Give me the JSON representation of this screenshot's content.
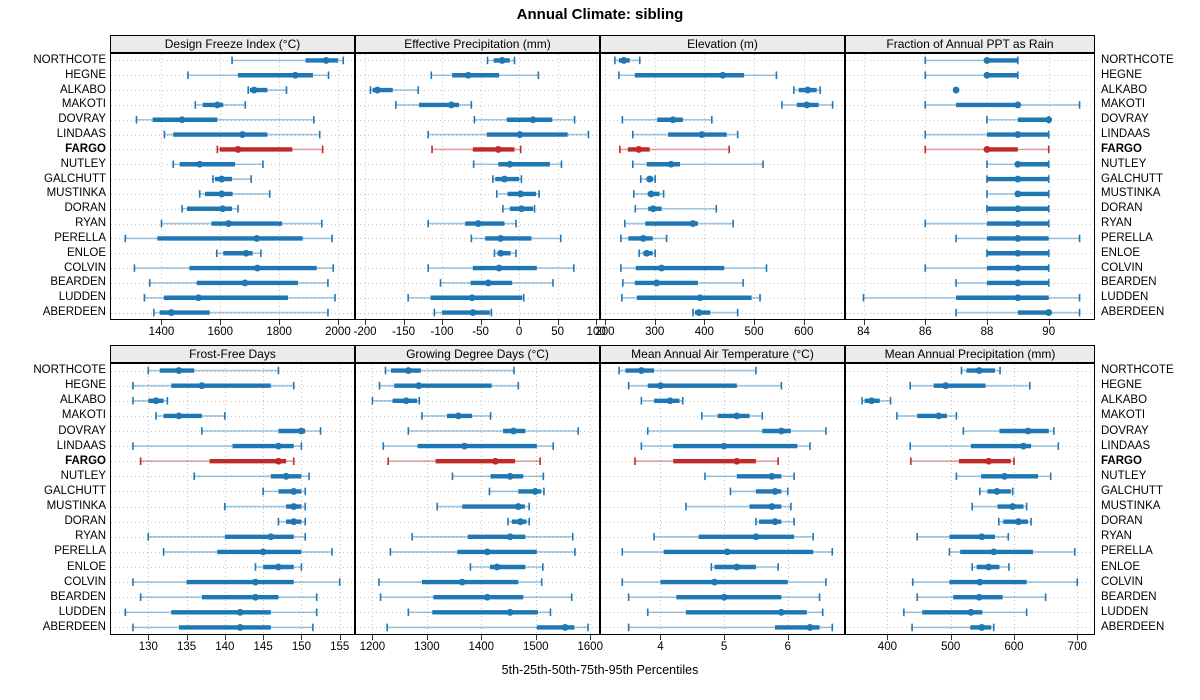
{
  "title": "Annual Climate: sibling",
  "caption": "5th-25th-50th-75th-95th Percentiles",
  "colors": {
    "series": "#1f77b4",
    "series_faint": "rgba(31,119,180,0.42)",
    "highlight": "#bf2b2b",
    "highlight_faint": "rgba(191,43,43,0.42)",
    "strip_bg": "#ebebeb",
    "grid": "#c4c4c4",
    "border": "#000000"
  },
  "chart_data": {
    "type": "dotplot",
    "percentiles": [
      "5th",
      "25th",
      "50th",
      "75th",
      "95th"
    ],
    "legend": "none",
    "grid": "dotted",
    "stations": [
      "NORTHCOTE",
      "HEGNE",
      "ALKABO",
      "MAKOTI",
      "DOVRAY",
      "LINDAAS",
      "FARGO",
      "NUTLEY",
      "GALCHUTT",
      "MUSTINKA",
      "DORAN",
      "RYAN",
      "PERELLA",
      "ENLOE",
      "COLVIN",
      "BEARDEN",
      "LUDDEN",
      "ABERDEEN"
    ],
    "highlight_station": "FARGO",
    "panels": [
      {
        "title": "Design Freeze Index (°C)",
        "grid": [
          0,
          0
        ],
        "domain": [
          1225,
          2058
        ],
        "ticks": [
          1400,
          1600,
          1800,
          2000
        ],
        "values": [
          [
            1640,
            1890,
            1960,
            2000,
            2018
          ],
          [
            1490,
            1660,
            1855,
            1915,
            1968
          ],
          [
            1695,
            1701,
            1715,
            1760,
            1825
          ],
          [
            1515,
            1540,
            1590,
            1610,
            1685
          ],
          [
            1315,
            1370,
            1470,
            1590,
            1918
          ],
          [
            1410,
            1440,
            1675,
            1760,
            1938
          ],
          [
            1590,
            1598,
            1660,
            1845,
            1948
          ],
          [
            1440,
            1462,
            1530,
            1650,
            1745
          ],
          [
            1575,
            1582,
            1605,
            1640,
            1705
          ],
          [
            1530,
            1548,
            1605,
            1642,
            1768
          ],
          [
            1470,
            1487,
            1608,
            1640,
            1660
          ],
          [
            1400,
            1570,
            1628,
            1810,
            1945
          ],
          [
            1277,
            1386,
            1724,
            1880,
            1980
          ],
          [
            1588,
            1610,
            1688,
            1710,
            1738
          ],
          [
            1308,
            1495,
            1726,
            1928,
            1984
          ],
          [
            1360,
            1520,
            1684,
            1864,
            1966
          ],
          [
            1342,
            1408,
            1526,
            1830,
            1990
          ],
          [
            1374,
            1394,
            1434,
            1564,
            1966
          ]
        ]
      },
      {
        "title": "Effective Precipitation (mm)",
        "grid": [
          0,
          1
        ],
        "domain": [
          -213,
          105
        ],
        "ticks": [
          -200,
          -150,
          -100,
          -50,
          0,
          50,
          100
        ],
        "values": [
          [
            -41,
            -33,
            -22,
            -12,
            -6
          ],
          [
            -114,
            -87,
            -66,
            -26,
            25
          ],
          [
            -193,
            -190,
            -184,
            -164,
            -131
          ],
          [
            -160,
            -130,
            -88,
            -78,
            -62
          ],
          [
            -58,
            -16,
            18,
            43,
            72
          ],
          [
            -118,
            -42,
            1,
            63,
            90
          ],
          [
            -113,
            -60,
            -27,
            -6,
            2
          ],
          [
            -59,
            -27,
            -12,
            40,
            55
          ],
          [
            -34,
            -31,
            -19,
            0,
            3
          ],
          [
            -29,
            -15,
            2,
            22,
            26
          ],
          [
            -21,
            -12,
            3,
            18,
            20
          ],
          [
            -118,
            -70,
            -53,
            -19,
            -4
          ],
          [
            -62,
            -44,
            -24,
            16,
            54
          ],
          [
            -32,
            -28,
            -24,
            -11,
            -4
          ],
          [
            -118,
            -60,
            -26,
            23,
            71
          ],
          [
            -102,
            -63,
            -40,
            -9,
            44
          ],
          [
            -144,
            -115,
            -61,
            4,
            6
          ],
          [
            -110,
            -100,
            -60,
            -38,
            -36
          ]
        ]
      },
      {
        "title": "Elevation (m)",
        "grid": [
          0,
          2
        ],
        "domain": [
          190,
          683
        ],
        "ticks": [
          200,
          300,
          400,
          500,
          600
        ],
        "values": [
          [
            220,
            228,
            238,
            250,
            270
          ],
          [
            228,
            260,
            437,
            480,
            545
          ],
          [
            580,
            590,
            608,
            626,
            633
          ],
          [
            556,
            586,
            606,
            630,
            658
          ],
          [
            235,
            305,
            337,
            357,
            415
          ],
          [
            256,
            327,
            395,
            445,
            467
          ],
          [
            230,
            246,
            268,
            290,
            450
          ],
          [
            256,
            284,
            333,
            351,
            518
          ],
          [
            272,
            284,
            290,
            297,
            301
          ],
          [
            258,
            286,
            293,
            310,
            318
          ],
          [
            261,
            287,
            297,
            314,
            424
          ],
          [
            240,
            281,
            377,
            387,
            458
          ],
          [
            232,
            247,
            277,
            296,
            324
          ],
          [
            269,
            277,
            284,
            296,
            301
          ],
          [
            232,
            262,
            314,
            440,
            525
          ],
          [
            236,
            260,
            304,
            387,
            478
          ],
          [
            234,
            264,
            391,
            495,
            512
          ],
          [
            377,
            381,
            389,
            412,
            467
          ]
        ]
      },
      {
        "title": "Fraction of Annual PPT as Rain",
        "grid": [
          0,
          3
        ],
        "domain": [
          83.4,
          91.5
        ],
        "ticks": [
          84,
          86,
          88,
          90
        ],
        "values": [
          [
            86,
            88,
            88,
            89,
            89
          ],
          [
            86,
            88,
            88,
            89,
            89
          ],
          [
            87,
            87,
            87,
            87,
            87
          ],
          [
            86,
            87,
            89,
            89,
            91
          ],
          [
            88,
            89,
            90,
            90,
            90
          ],
          [
            86,
            88,
            89,
            90,
            90
          ],
          [
            86,
            88,
            88,
            89,
            90
          ],
          [
            88,
            89,
            89,
            90,
            90
          ],
          [
            88,
            88,
            89,
            90,
            90
          ],
          [
            88,
            89,
            89,
            90,
            90
          ],
          [
            88,
            88,
            89,
            90,
            90
          ],
          [
            86,
            88,
            89,
            90,
            90
          ],
          [
            87,
            88,
            89,
            90,
            91
          ],
          [
            88,
            88,
            89,
            90,
            90
          ],
          [
            86,
            88,
            89,
            90,
            90
          ],
          [
            87,
            88,
            89,
            90,
            90
          ],
          [
            84,
            87,
            89,
            90,
            91
          ],
          [
            87,
            89,
            90,
            90,
            91
          ]
        ]
      },
      {
        "title": "Frost-Free Days",
        "grid": [
          1,
          0
        ],
        "domain": [
          125,
          157
        ],
        "ticks": [
          130,
          135,
          140,
          145,
          150,
          155
        ],
        "values": [
          [
            130,
            131.5,
            134,
            136,
            147
          ],
          [
            128,
            133,
            137,
            146,
            149
          ],
          [
            128,
            130,
            131,
            132,
            132.5
          ],
          [
            131,
            132,
            134,
            137,
            140
          ],
          [
            137,
            147,
            150,
            150.5,
            152.5
          ],
          [
            128,
            141,
            147,
            149,
            150
          ],
          [
            129,
            138,
            147,
            148,
            149
          ],
          [
            136,
            146,
            148,
            150,
            151
          ],
          [
            145,
            147,
            149,
            150,
            150.5
          ],
          [
            140,
            148,
            149,
            150,
            150.5
          ],
          [
            147,
            148,
            149,
            150,
            150.5
          ],
          [
            130,
            140,
            146,
            149,
            150.5
          ],
          [
            132,
            139,
            145,
            150,
            154
          ],
          [
            144,
            145,
            147,
            149,
            150
          ],
          [
            128,
            135,
            144,
            149,
            155
          ],
          [
            129,
            137,
            144,
            147,
            152
          ],
          [
            127,
            133,
            142,
            146,
            152
          ],
          [
            128,
            134,
            142,
            146,
            151.5
          ]
        ]
      },
      {
        "title": "Growing Degree Days (°C)",
        "grid": [
          1,
          1
        ],
        "domain": [
          1168,
          1618
        ],
        "ticks": [
          1200,
          1300,
          1400,
          1500,
          1600
        ],
        "values": [
          [
            1224,
            1234,
            1266,
            1289,
            1460
          ],
          [
            1213,
            1240,
            1285,
            1419,
            1468
          ],
          [
            1200,
            1237,
            1262,
            1282,
            1286
          ],
          [
            1291,
            1337,
            1358,
            1383,
            1417
          ],
          [
            1266,
            1440,
            1459,
            1481,
            1578
          ],
          [
            1220,
            1283,
            1369,
            1502,
            1532
          ],
          [
            1229,
            1316,
            1426,
            1462,
            1508
          ],
          [
            1347,
            1417,
            1453,
            1477,
            1514
          ],
          [
            1415,
            1468,
            1499,
            1510,
            1515
          ],
          [
            1319,
            1365,
            1468,
            1480,
            1488
          ],
          [
            1449,
            1456,
            1472,
            1483,
            1488
          ],
          [
            1273,
            1375,
            1453,
            1481,
            1568
          ],
          [
            1233,
            1356,
            1411,
            1502,
            1572
          ],
          [
            1380,
            1416,
            1429,
            1481,
            1513
          ],
          [
            1212,
            1291,
            1365,
            1468,
            1511
          ],
          [
            1215,
            1312,
            1411,
            1477,
            1566
          ],
          [
            1266,
            1310,
            1453,
            1504,
            1527
          ],
          [
            1227,
            1502,
            1554,
            1571,
            1596
          ]
        ]
      },
      {
        "title": "Mean Annual Air Temperature (°C)",
        "grid": [
          1,
          2
        ],
        "domain": [
          3.05,
          6.9
        ],
        "ticks": [
          4,
          5,
          6
        ],
        "values": [
          [
            3.35,
            3.45,
            3.7,
            3.9,
            5.5
          ],
          [
            3.5,
            3.8,
            4.0,
            5.2,
            5.9
          ],
          [
            3.7,
            3.9,
            4.15,
            4.3,
            4.35
          ],
          [
            4.65,
            4.9,
            5.2,
            5.4,
            5.6
          ],
          [
            3.8,
            5.6,
            5.9,
            6.05,
            6.6
          ],
          [
            3.7,
            4.2,
            5.0,
            6.15,
            6.35
          ],
          [
            3.6,
            4.2,
            5.2,
            5.5,
            5.85
          ],
          [
            4.7,
            5.2,
            5.75,
            5.9,
            6.1
          ],
          [
            5.1,
            5.5,
            5.8,
            5.9,
            6.0
          ],
          [
            4.4,
            5.4,
            5.75,
            5.9,
            6.05
          ],
          [
            5.5,
            5.55,
            5.8,
            5.9,
            6.1
          ],
          [
            3.9,
            4.6,
            5.5,
            6.1,
            6.4
          ],
          [
            3.4,
            4.05,
            5.05,
            6.4,
            6.7
          ],
          [
            4.8,
            4.85,
            5.2,
            5.5,
            5.85
          ],
          [
            3.4,
            4.0,
            4.85,
            6.0,
            6.6
          ],
          [
            3.5,
            4.25,
            5.0,
            5.9,
            6.5
          ],
          [
            3.8,
            4.4,
            5.9,
            6.3,
            6.55
          ],
          [
            3.5,
            5.8,
            6.35,
            6.5,
            6.7
          ]
        ]
      },
      {
        "title": "Mean Annual Precipitation (mm)",
        "grid": [
          1,
          3
        ],
        "domain": [
          333,
          728
        ],
        "ticks": [
          400,
          500,
          600,
          700
        ],
        "values": [
          [
            517,
            525,
            545,
            570,
            578
          ],
          [
            436,
            473,
            492,
            555,
            625
          ],
          [
            360,
            364,
            375,
            388,
            405
          ],
          [
            415,
            447,
            481,
            494,
            509
          ],
          [
            520,
            577,
            622,
            655,
            663
          ],
          [
            436,
            532,
            615,
            627,
            670
          ],
          [
            437,
            513,
            560,
            595,
            600
          ],
          [
            509,
            548,
            585,
            638,
            658
          ],
          [
            546,
            558,
            573,
            595,
            598
          ],
          [
            534,
            574,
            598,
            615,
            620
          ],
          [
            576,
            583,
            607,
            622,
            627
          ],
          [
            447,
            498,
            549,
            570,
            591
          ],
          [
            498,
            515,
            568,
            630,
            696
          ],
          [
            534,
            541,
            560,
            577,
            592
          ],
          [
            440,
            498,
            546,
            620,
            700
          ],
          [
            447,
            504,
            545,
            582,
            650
          ],
          [
            426,
            455,
            532,
            550,
            620
          ],
          [
            439,
            531,
            549,
            564,
            568
          ]
        ]
      }
    ]
  }
}
